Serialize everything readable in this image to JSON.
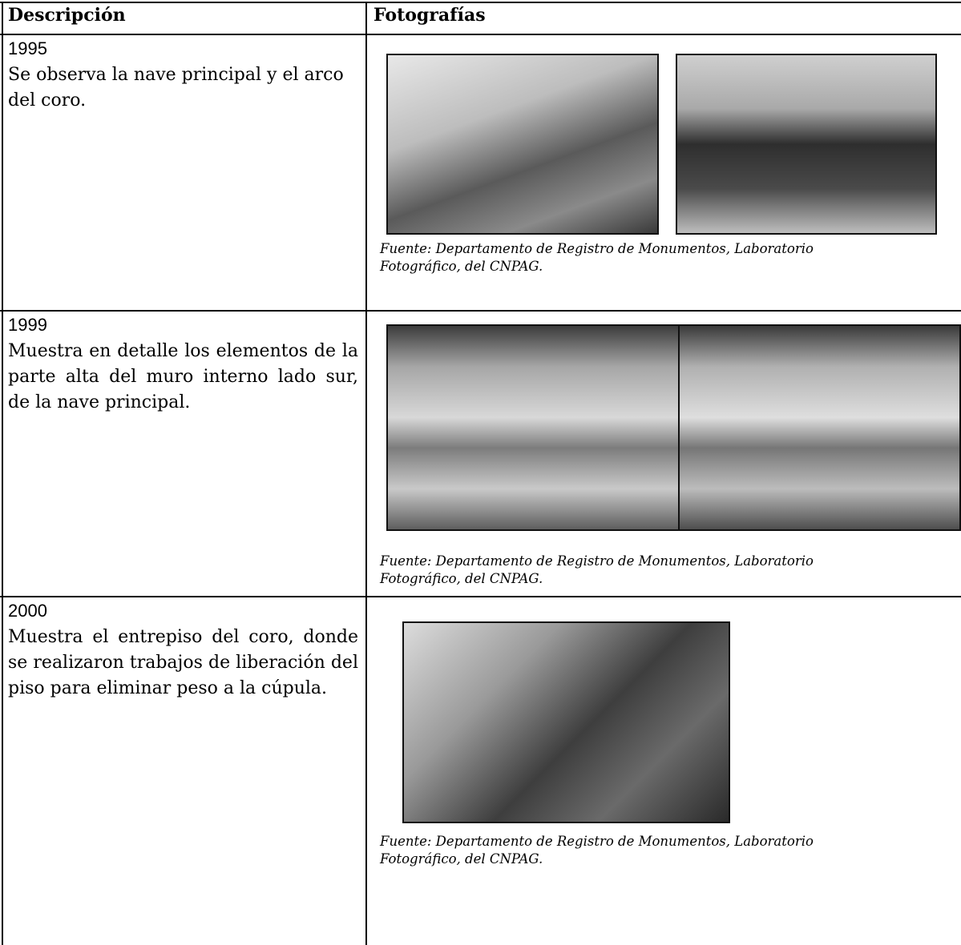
{
  "header": {
    "columns": [
      "Descripción",
      "Fotografías"
    ]
  },
  "table": {
    "rows": [
      {
        "year": "1995",
        "description": "Se observa la nave principal y el arco del coro.",
        "caption": "Fuente: Departamento de Registro de Monumentos, Laboratorio Fotográfico, del CNPAG."
      },
      {
        "year": "1999",
        "description": "Muestra en detalle los elementos de la parte alta del muro interno lado sur, de la nave principal.",
        "caption": "Fuente: Departamento de Registro de Monumentos, Laboratorio Fotográfico, del CNPAG."
      },
      {
        "year": "2000",
        "description": "Muestra el entrepiso del coro, donde se realizaron trabajos de liberación del piso para eliminar peso a la cúpula.",
        "caption": "Fuente: Departamento de Registro de Monumentos, Laboratorio Fotográfico, del CNPAG."
      }
    ]
  }
}
